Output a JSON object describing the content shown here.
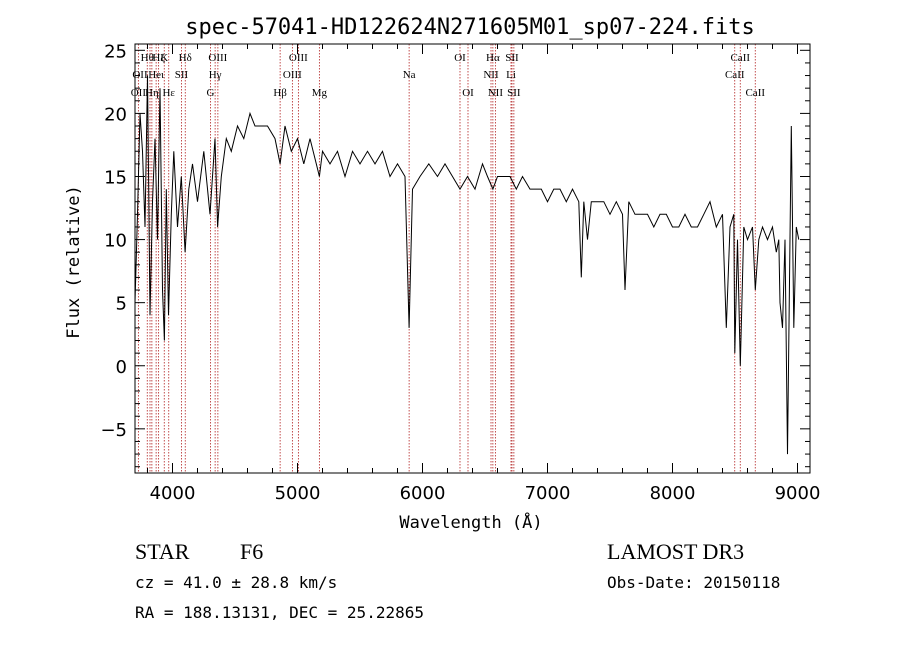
{
  "chart_data": {
    "type": "line",
    "title": "spec-57041-HD122624N271605M01_sp07-224.fits",
    "xlabel": "Wavelength (Å)",
    "ylabel": "Flux (relative)",
    "xlim": [
      3700,
      9100
    ],
    "ylim": [
      -8.5,
      25.5
    ],
    "xticks": [
      4000,
      5000,
      6000,
      7000,
      8000,
      9000
    ],
    "yticks": [
      -5,
      0,
      5,
      10,
      15,
      20,
      25
    ],
    "grid": false,
    "series": [
      {
        "name": "Flux",
        "x": [
          3700,
          3720,
          3740,
          3760,
          3780,
          3800,
          3820,
          3840,
          3860,
          3880,
          3900,
          3920,
          3935,
          3950,
          3968,
          3990,
          4010,
          4040,
          4070,
          4101,
          4130,
          4160,
          4200,
          4250,
          4300,
          4340,
          4361,
          4390,
          4430,
          4470,
          4520,
          4570,
          4620,
          4660,
          4700,
          4760,
          4820,
          4861,
          4900,
          4950,
          5000,
          5050,
          5100,
          5150,
          5175,
          5200,
          5260,
          5320,
          5380,
          5440,
          5500,
          5560,
          5620,
          5680,
          5740,
          5800,
          5860,
          5893,
          5920,
          5980,
          6050,
          6120,
          6180,
          6240,
          6300,
          6360,
          6420,
          6480,
          6520,
          6563,
          6600,
          6650,
          6700,
          6750,
          6800,
          6860,
          6900,
          6950,
          7000,
          7050,
          7100,
          7150,
          7200,
          7250,
          7270,
          7290,
          7320,
          7350,
          7400,
          7450,
          7500,
          7550,
          7600,
          7620,
          7650,
          7700,
          7750,
          7800,
          7850,
          7900,
          7950,
          8000,
          8050,
          8100,
          8150,
          8200,
          8250,
          8300,
          8350,
          8400,
          8430,
          8460,
          8490,
          8498,
          8520,
          8542,
          8570,
          8600,
          8640,
          8662,
          8690,
          8720,
          8760,
          8800,
          8830,
          8850,
          8860,
          8880,
          8900,
          8920,
          8950,
          8970,
          8990,
          9010
        ],
        "y": [
          5,
          12,
          20,
          17,
          11,
          23,
          4,
          13,
          18,
          10,
          22,
          6,
          2,
          14,
          4,
          12,
          17,
          11,
          15,
          9,
          14,
          16,
          13,
          17,
          12,
          18,
          11,
          15,
          18,
          17,
          19,
          18,
          20,
          19,
          19,
          19,
          18,
          16,
          19,
          17,
          18,
          16,
          18,
          16,
          15,
          17,
          16,
          17,
          15,
          17,
          16,
          17,
          16,
          17,
          15,
          16,
          15,
          3,
          14,
          15,
          16,
          15,
          16,
          15,
          14,
          15,
          14,
          16,
          15,
          14,
          15,
          15,
          15,
          14,
          15,
          14,
          14,
          14,
          13,
          14,
          14,
          13,
          14,
          13,
          7,
          13,
          10,
          13,
          13,
          13,
          12,
          13,
          12,
          6,
          13,
          12,
          12,
          12,
          11,
          12,
          12,
          11,
          11,
          12,
          11,
          11,
          12,
          13,
          11,
          12,
          3,
          11,
          12,
          1,
          10,
          0,
          11,
          10,
          11,
          6,
          10,
          11,
          10,
          11,
          9,
          10,
          5,
          3,
          10,
          -7,
          19,
          3,
          11,
          10
        ]
      }
    ],
    "lines": [
      {
        "name": "OII",
        "x": 3727,
        "row": 2,
        "dx": 0
      },
      {
        "name": "Hθ",
        "x": 3798,
        "row": 0,
        "dx": 0
      },
      {
        "name": "OII",
        "x": 3820,
        "row": 1,
        "dx": -10
      },
      {
        "name": "Hη",
        "x": 3835,
        "row": 2,
        "dx": 0
      },
      {
        "name": "Heι",
        "x": 3869,
        "row": 1,
        "dx": 0
      },
      {
        "name": "Hζ",
        "x": 3889,
        "row": 0,
        "dx": 0
      },
      {
        "name": "K",
        "x": 3934,
        "row": 0,
        "dx": 0
      },
      {
        "name": "Hε",
        "x": 3970,
        "row": 2,
        "dx": 0
      },
      {
        "name": "SII",
        "x": 4072,
        "row": 1,
        "dx": 0
      },
      {
        "name": "Hδ",
        "x": 4102,
        "row": 0,
        "dx": 0
      },
      {
        "name": "G",
        "x": 4304,
        "row": 2,
        "dx": 0
      },
      {
        "name": "Hγ",
        "x": 4341,
        "row": 1,
        "dx": 0
      },
      {
        "name": "OIII",
        "x": 4363,
        "row": 0,
        "dx": 0
      },
      {
        "name": "Hβ",
        "x": 4861,
        "row": 2,
        "dx": 0
      },
      {
        "name": "OIII",
        "x": 4959,
        "row": 1,
        "dx": 0
      },
      {
        "name": "OIII",
        "x": 5007,
        "row": 0,
        "dx": 0
      },
      {
        "name": "Mg",
        "x": 5175,
        "row": 2,
        "dx": 0
      },
      {
        "name": "Na",
        "x": 5893,
        "row": 1,
        "dx": 0
      },
      {
        "name": "OI",
        "x": 6300,
        "row": 0,
        "dx": 0
      },
      {
        "name": "OI",
        "x": 6364,
        "row": 2,
        "dx": 0
      },
      {
        "name": "NII",
        "x": 6548,
        "row": 1,
        "dx": 0
      },
      {
        "name": "Hα",
        "x": 6563,
        "row": 0,
        "dx": 0
      },
      {
        "name": "NII",
        "x": 6583,
        "row": 2,
        "dx": 0
      },
      {
        "name": "Li",
        "x": 6708,
        "row": 1,
        "dx": 0
      },
      {
        "name": "SII",
        "x": 6716,
        "row": 0,
        "dx": 0
      },
      {
        "name": "SII",
        "x": 6731,
        "row": 2,
        "dx": 0
      },
      {
        "name": "CaII",
        "x": 8498,
        "row": 1,
        "dx": 0
      },
      {
        "name": "CaII",
        "x": 8542,
        "row": 0,
        "dx": 0
      },
      {
        "name": "CaII",
        "x": 8662,
        "row": 2,
        "dx": 0
      }
    ]
  },
  "info": {
    "class_label": "STAR",
    "subclass": "F6",
    "survey": "LAMOST DR3",
    "cz": "cz = 41.0 ± 28.8 km/s",
    "obs_date": "Obs-Date: 20150118",
    "radec": "RA = 188.13131, DEC =  25.22865"
  },
  "colors": {
    "line_marker": "#b22222",
    "axis": "#000000",
    "spectrum": "#000000"
  }
}
